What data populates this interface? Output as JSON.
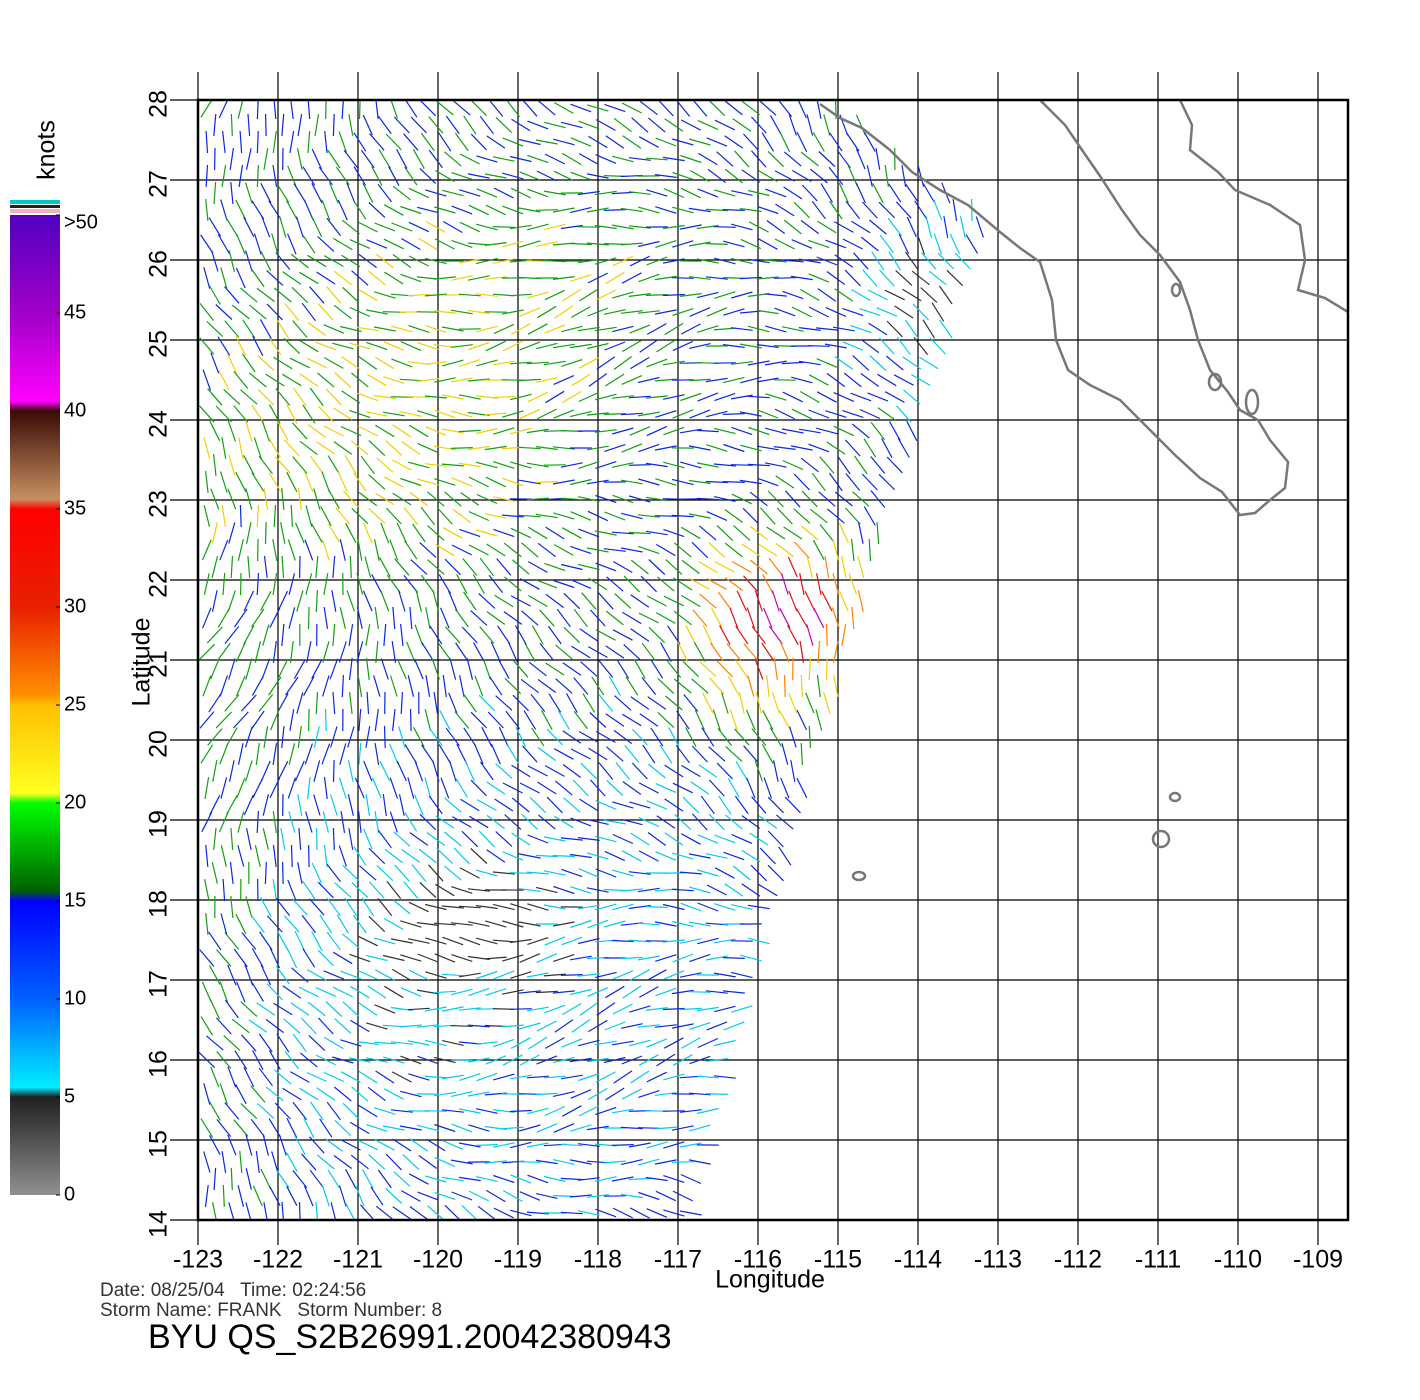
{
  "map": {
    "x_label": "Longitude",
    "y_label": "Latitude",
    "xlim": [
      -123,
      -109
    ],
    "ylim": [
      14,
      28
    ],
    "xticks": [
      -123,
      -122,
      -121,
      -120,
      -119,
      -118,
      -117,
      -116,
      -115,
      -114,
      -113,
      -112,
      -111,
      -110,
      -109
    ],
    "yticks": [
      14,
      15,
      16,
      17,
      18,
      19,
      20,
      21,
      22,
      23,
      24,
      25,
      26,
      27,
      28
    ],
    "colorbar": {
      "title": "knots",
      "lim": [
        0,
        50
      ],
      "ticks": [
        0,
        5,
        10,
        15,
        20,
        25,
        30,
        35,
        40,
        45,
        {
          "value": 50,
          "label": ">50"
        }
      ]
    },
    "footer": {
      "date_line": "Date: 08/25/04   Time: 02:24:56",
      "storm_line": "Storm Name: FRANK   Storm Number: 8",
      "product": "BYU QS_S2B26991.20042380943"
    }
  }
}
